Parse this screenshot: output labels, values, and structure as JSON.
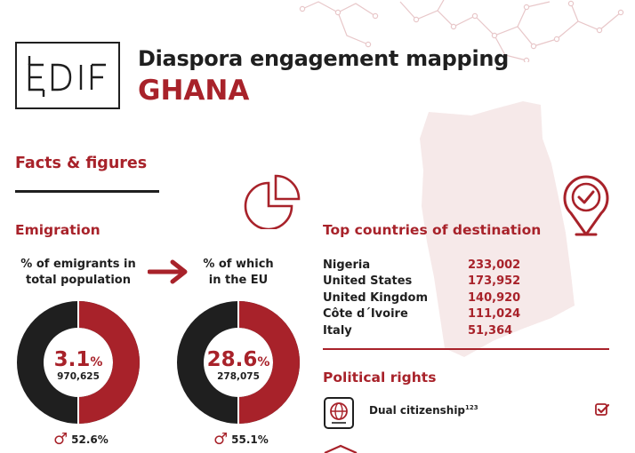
{
  "header": {
    "logo_text": "EUDiF",
    "title": "Diaspora engagement mapping",
    "country": "GHANA"
  },
  "facts": {
    "heading": "Facts & figures"
  },
  "emigration": {
    "heading": "Emigration",
    "left_caption_line1": "% of emigrants in",
    "left_caption_line2": "total population",
    "right_caption_line1": "% of which",
    "right_caption_line2": "in the EU",
    "left_donut": {
      "percent": "3.1",
      "fraction": 0.5,
      "count": "970,625",
      "male_percent": "52.6%"
    },
    "right_donut": {
      "percent": "28.6",
      "fraction": 0.5,
      "count": "278,075",
      "male_percent": "55.1%"
    },
    "percent_sign": "%"
  },
  "destinations": {
    "heading": "Top countries of destination",
    "items": [
      {
        "country": "Nigeria",
        "value": "233,002"
      },
      {
        "country": "United States",
        "value": "173,952"
      },
      {
        "country": "United Kingdom",
        "value": "140,920"
      },
      {
        "country": "Côte d´Ivoire",
        "value": "111,024"
      },
      {
        "country": "Italy",
        "value": "51,364"
      }
    ]
  },
  "political_rights": {
    "heading": "Political rights",
    "dual_citizenship_label": "Dual citizenship",
    "dual_citizenship_ref": "123"
  },
  "colors": {
    "accent": "#a8222a",
    "dark": "#1f1f1f",
    "map": "#f6e9e9"
  },
  "icons": [
    "pie-chart-icon",
    "arrow-right-icon",
    "location-check-icon",
    "passport-icon",
    "checkbox-checked-icon",
    "male-icon"
  ]
}
